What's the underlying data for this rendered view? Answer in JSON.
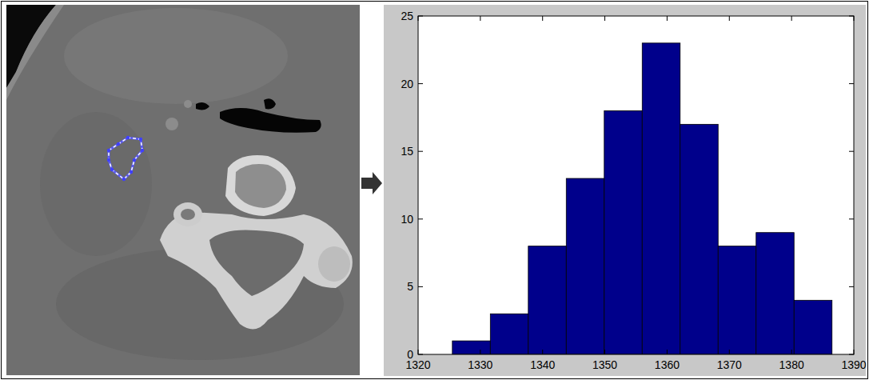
{
  "chart_data": {
    "type": "histogram",
    "bins": [
      1325.5,
      1331.6,
      1337.7,
      1343.8,
      1349.9,
      1356.0,
      1362.1,
      1368.2,
      1374.3,
      1380.4,
      1386.5
    ],
    "counts": [
      1,
      3,
      8,
      13,
      18,
      23,
      17,
      8,
      9,
      4
    ],
    "color": "#00008b",
    "xlim": [
      1320,
      1390
    ],
    "xticks": [
      1320,
      1330,
      1340,
      1350,
      1360,
      1370,
      1380,
      1390
    ],
    "ylim": [
      0,
      25
    ],
    "yticks": [
      0,
      5,
      10,
      15,
      20,
      25
    ],
    "grid": false
  }
}
